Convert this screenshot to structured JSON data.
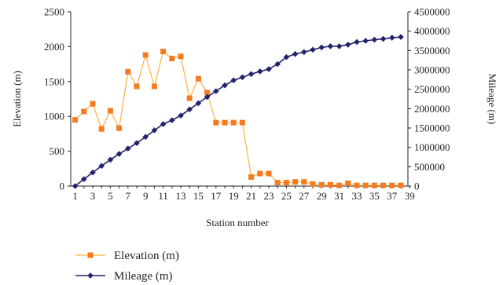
{
  "chart_data": {
    "type": "line",
    "xlabel": "Station number",
    "ylabel_left": "Elevation (m)",
    "ylabel_right": "Mileage (m)",
    "x_ticks": [
      "1",
      "3",
      "5",
      "7",
      "9",
      "11",
      "13",
      "15",
      "17",
      "19",
      "21",
      "23",
      "25",
      "27",
      "29",
      "31",
      "33",
      "35",
      "37",
      "39"
    ],
    "y_left_ticks": [
      "0",
      "500",
      "1000",
      "1500",
      "2000",
      "2500"
    ],
    "y_right_ticks": [
      "0",
      "500000",
      "1000000",
      "1500000",
      "2000000",
      "2500000",
      "3000000",
      "3500000",
      "4000000",
      "4500000"
    ],
    "x_range": [
      1,
      39
    ],
    "y_left_range": [
      0,
      2500
    ],
    "y_right_range": [
      0,
      4500000
    ],
    "grid": false,
    "legend_position": "bottom",
    "series": [
      {
        "name": "Elevation (m)",
        "axis": "left",
        "color": "#f47b20",
        "marker": "square",
        "x": [
          1,
          2,
          3,
          4,
          5,
          6,
          7,
          8,
          9,
          10,
          11,
          12,
          13,
          14,
          15,
          16,
          17,
          18,
          19,
          20,
          21,
          22,
          23,
          24,
          25,
          26,
          27,
          28,
          29,
          30,
          31,
          32,
          33,
          34,
          35,
          36,
          37,
          38
        ],
        "values": [
          950,
          1070,
          1180,
          820,
          1080,
          830,
          1640,
          1430,
          1880,
          1430,
          1930,
          1830,
          1860,
          1260,
          1540,
          1340,
          910,
          910,
          910,
          910,
          130,
          180,
          180,
          50,
          50,
          60,
          60,
          30,
          20,
          20,
          10,
          40,
          10,
          10,
          10,
          10,
          10,
          10
        ]
      },
      {
        "name": "Mileage (m)",
        "axis": "right",
        "color": "#23246b",
        "marker": "diamond",
        "x": [
          1,
          2,
          3,
          4,
          5,
          6,
          7,
          8,
          9,
          10,
          11,
          12,
          13,
          14,
          15,
          16,
          17,
          18,
          19,
          20,
          21,
          22,
          23,
          24,
          25,
          26,
          27,
          28,
          29,
          30,
          31,
          32,
          33,
          34,
          35,
          36,
          37,
          38
        ],
        "values": [
          0,
          180000,
          350000,
          520000,
          680000,
          830000,
          970000,
          1110000,
          1270000,
          1440000,
          1600000,
          1700000,
          1820000,
          1980000,
          2140000,
          2300000,
          2450000,
          2600000,
          2730000,
          2810000,
          2890000,
          2960000,
          3020000,
          3150000,
          3330000,
          3410000,
          3460000,
          3520000,
          3580000,
          3610000,
          3610000,
          3650000,
          3720000,
          3750000,
          3780000,
          3800000,
          3830000,
          3850000
        ]
      }
    ]
  }
}
